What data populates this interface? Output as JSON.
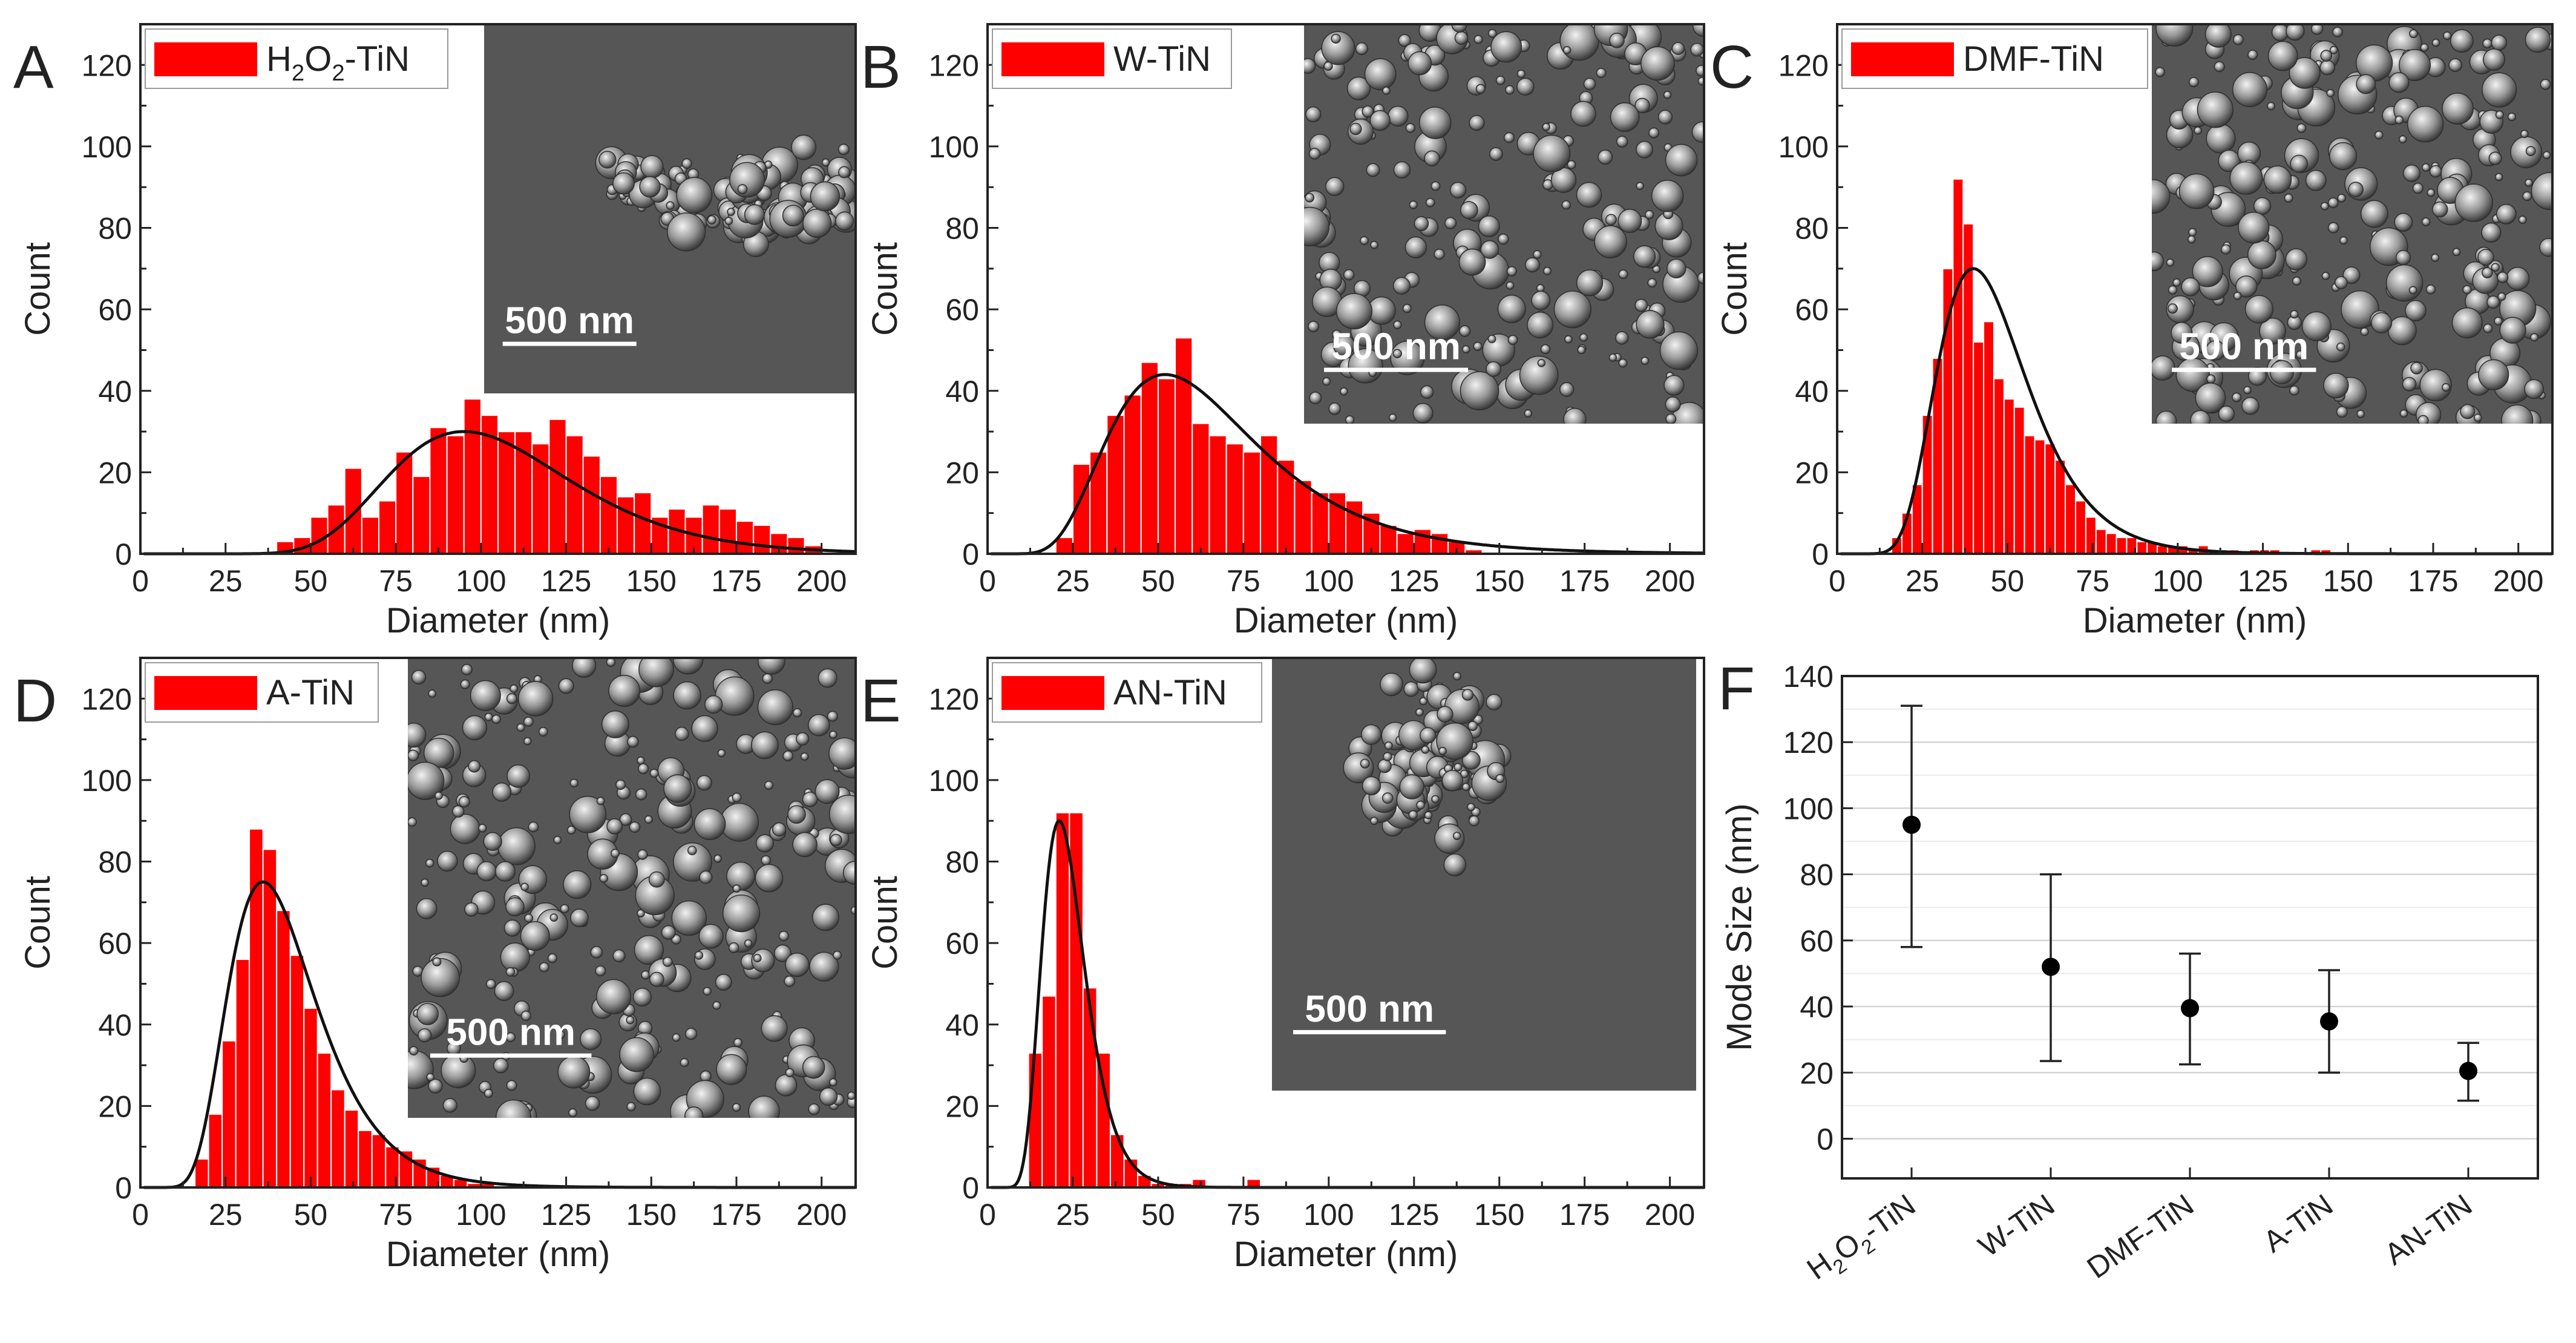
{
  "chart_data": [
    {
      "type": "bar",
      "panel_letter": "A",
      "legend": [
        {
          "text": "H",
          "sub": false
        },
        {
          "text": "2",
          "sub": true
        },
        {
          "text": "O",
          "sub": false
        },
        {
          "text": "2",
          "sub": true
        },
        {
          "text": "-TiN",
          "sub": false
        }
      ],
      "xlabel": "Diameter (nm)",
      "ylabel": "Count",
      "xlim": [
        0,
        210
      ],
      "ylim": [
        0,
        130
      ],
      "xticks": [
        0,
        25,
        50,
        75,
        100,
        125,
        150,
        175,
        200
      ],
      "yticks": [
        0,
        20,
        40,
        60,
        80,
        100,
        120
      ],
      "bin_width": 5,
      "bin_starts": [
        40,
        45,
        50,
        55,
        60,
        65,
        70,
        75,
        80,
        85,
        90,
        95,
        100,
        105,
        110,
        115,
        120,
        125,
        130,
        135,
        140,
        145,
        150,
        155,
        160,
        165,
        170,
        175,
        180,
        185,
        190,
        195
      ],
      "counts": [
        3,
        4,
        9,
        12,
        21,
        9,
        13,
        25,
        19,
        31,
        29,
        38,
        34,
        30,
        30,
        27,
        33,
        29,
        24,
        19,
        14,
        15,
        9,
        11,
        9,
        12,
        11,
        8,
        7,
        5,
        4,
        2
      ],
      "fit": {
        "peak": 95,
        "amplitude": 30,
        "sigma": 0.28
      },
      "inset_scale_label": "500 nm",
      "inset_texture": {
        "density": 0.55,
        "seed": 11,
        "cluster": true
      }
    },
    {
      "type": "bar",
      "panel_letter": "B",
      "legend": [
        {
          "text": "W-TiN",
          "sub": false
        }
      ],
      "xlabel": "Diameter (nm)",
      "ylabel": "Count",
      "xlim": [
        0,
        210
      ],
      "ylim": [
        0,
        130
      ],
      "xticks": [
        0,
        25,
        50,
        75,
        100,
        125,
        150,
        175,
        200
      ],
      "yticks": [
        0,
        20,
        40,
        60,
        80,
        100,
        120
      ],
      "bin_width": 5,
      "bin_starts": [
        20,
        25,
        30,
        35,
        40,
        45,
        50,
        55,
        60,
        65,
        70,
        75,
        80,
        85,
        90,
        95,
        100,
        105,
        110,
        115,
        120,
        125,
        130,
        135,
        140
      ],
      "counts": [
        4,
        22,
        25,
        34,
        39,
        47,
        43,
        53,
        32,
        29,
        27,
        25,
        29,
        23,
        18,
        15,
        15,
        13,
        10,
        7,
        5,
        6,
        5,
        3,
        1
      ],
      "fit": {
        "peak": 52,
        "amplitude": 44,
        "sigma": 0.42
      },
      "inset_scale_label": "500 nm",
      "inset_texture": {
        "density": 0.8,
        "seed": 23,
        "cluster": false
      }
    },
    {
      "type": "bar",
      "panel_letter": "C",
      "legend": [
        {
          "text": "DMF-TiN",
          "sub": false
        }
      ],
      "xlabel": "Diameter (nm)",
      "ylabel": "Count",
      "xlim": [
        0,
        210
      ],
      "ylim": [
        0,
        130
      ],
      "xticks": [
        0,
        25,
        50,
        75,
        100,
        125,
        150,
        175,
        200
      ],
      "yticks": [
        0,
        20,
        40,
        60,
        80,
        100,
        120
      ],
      "bin_width": 3,
      "bin_starts": [
        16,
        19,
        22,
        25,
        28,
        31,
        34,
        37,
        40,
        43,
        46,
        49,
        52,
        55,
        58,
        61,
        64,
        67,
        70,
        73,
        76,
        79,
        82,
        85,
        88,
        91,
        94,
        97,
        100,
        103,
        106,
        109,
        112,
        115,
        121,
        124,
        127,
        139,
        142
      ],
      "counts": [
        4,
        10,
        17,
        34,
        48,
        70,
        92,
        81,
        52,
        57,
        43,
        38,
        36,
        29,
        28,
        27,
        23,
        17,
        13,
        9,
        6,
        5,
        4,
        4,
        3,
        3,
        2,
        2,
        2,
        1,
        2,
        1,
        1,
        1,
        1,
        1,
        1,
        1,
        1
      ],
      "fit": {
        "peak": 40,
        "amplitude": 70,
        "sigma": 0.33
      },
      "inset_scale_label": "500 nm",
      "inset_texture": {
        "density": 0.9,
        "seed": 37,
        "cluster": false
      }
    },
    {
      "type": "bar",
      "panel_letter": "D",
      "legend": [
        {
          "text": "A-TiN",
          "sub": false
        }
      ],
      "xlabel": "Diameter (nm)",
      "ylabel": "Count",
      "xlim": [
        0,
        210
      ],
      "ylim": [
        0,
        130
      ],
      "xticks": [
        0,
        25,
        50,
        75,
        100,
        125,
        150,
        175,
        200
      ],
      "yticks": [
        0,
        20,
        40,
        60,
        80,
        100,
        120
      ],
      "bin_width": 4,
      "bin_starts": [
        16,
        20,
        24,
        28,
        32,
        36,
        40,
        44,
        48,
        52,
        56,
        60,
        64,
        68,
        72,
        76,
        80,
        84,
        88,
        92,
        96,
        100
      ],
      "counts": [
        7,
        18,
        36,
        56,
        88,
        83,
        68,
        57,
        44,
        33,
        24,
        19,
        14,
        13,
        10,
        9,
        7,
        5,
        3,
        2,
        1,
        1
      ],
      "fit": {
        "peak": 36,
        "amplitude": 75,
        "sigma": 0.36
      },
      "inset_scale_label": "500 nm",
      "inset_texture": {
        "density": 0.75,
        "seed": 41,
        "cluster": false
      }
    },
    {
      "type": "bar",
      "panel_letter": "E",
      "legend": [
        {
          "text": "AN-TiN",
          "sub": false
        }
      ],
      "xlabel": "Diameter (nm)",
      "ylabel": "Count",
      "xlim": [
        0,
        210
      ],
      "ylim": [
        0,
        130
      ],
      "xticks": [
        0,
        25,
        50,
        75,
        100,
        125,
        150,
        175,
        200
      ],
      "yticks": [
        0,
        20,
        40,
        60,
        80,
        100,
        120
      ],
      "bin_width": 4,
      "bin_starts": [
        12,
        16,
        20,
        24,
        28,
        32,
        36,
        40,
        44,
        48,
        52,
        56,
        60,
        76
      ],
      "counts": [
        33,
        47,
        92,
        92,
        49,
        33,
        13,
        7,
        3,
        1,
        1,
        1,
        2,
        2
      ],
      "fit": {
        "peak": 21,
        "amplitude": 90,
        "sigma": 0.3
      },
      "inset_scale_label": "500 nm",
      "inset_texture": {
        "density": 0.35,
        "seed": 53,
        "cluster": true
      }
    },
    {
      "type": "scatter",
      "panel_letter": "F",
      "ylabel": "Mode Size (nm)",
      "ylim": [
        -12,
        140
      ],
      "yticks": [
        0,
        20,
        40,
        60,
        80,
        100,
        120,
        140
      ],
      "categories": [
        [
          {
            "text": "H",
            "sub": false
          },
          {
            "text": "2",
            "sub": true
          },
          {
            "text": "O",
            "sub": false
          },
          {
            "text": "2",
            "sub": true
          },
          {
            "text": "-TiN",
            "sub": false
          }
        ],
        [
          {
            "text": "W-TiN",
            "sub": false
          }
        ],
        [
          {
            "text": "DMF-TiN",
            "sub": false
          }
        ],
        [
          {
            "text": "A-TiN",
            "sub": false
          }
        ],
        [
          {
            "text": "AN-TiN",
            "sub": false
          }
        ]
      ],
      "values": [
        95,
        52,
        39.5,
        35.5,
        20.5
      ],
      "err_low": [
        58,
        23.5,
        22.5,
        20,
        11.5
      ],
      "err_high": [
        131,
        80,
        56,
        51,
        29
      ],
      "grid": true
    }
  ],
  "colors": {
    "bar": "#ff0000",
    "bar_edge": "#ffffff",
    "fit": "#111111",
    "axis": "#222222",
    "grid": "#d4d4d4",
    "sem_bg": "#565656"
  }
}
